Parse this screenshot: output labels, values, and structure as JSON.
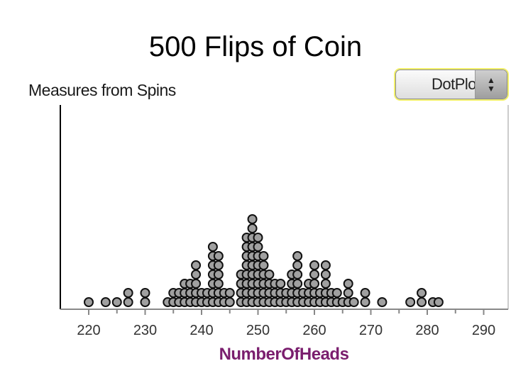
{
  "slide": {
    "title": "500 Flips of Coin"
  },
  "plot": {
    "caption": "Measures from Spins",
    "selector_label": "DotPlot",
    "selector_icon": "up-down-arrows-icon"
  },
  "chart_data": {
    "type": "dot",
    "title": "500 Flips of Coin",
    "xlabel": "NumberOfHeads",
    "xlim": [
      215,
      294
    ],
    "xticks": [
      220,
      230,
      240,
      250,
      260,
      270,
      280,
      290
    ],
    "dot_color": "#a0a0a0",
    "stacks": [
      {
        "x": 220,
        "count": 1
      },
      {
        "x": 223,
        "count": 1
      },
      {
        "x": 225,
        "count": 1
      },
      {
        "x": 227,
        "count": 2
      },
      {
        "x": 230,
        "count": 2
      },
      {
        "x": 234,
        "count": 1
      },
      {
        "x": 235,
        "count": 2
      },
      {
        "x": 236,
        "count": 2
      },
      {
        "x": 237,
        "count": 3
      },
      {
        "x": 238,
        "count": 3
      },
      {
        "x": 239,
        "count": 5
      },
      {
        "x": 240,
        "count": 2
      },
      {
        "x": 241,
        "count": 2
      },
      {
        "x": 242,
        "count": 7
      },
      {
        "x": 243,
        "count": 6
      },
      {
        "x": 244,
        "count": 2
      },
      {
        "x": 245,
        "count": 2
      },
      {
        "x": 247,
        "count": 4
      },
      {
        "x": 248,
        "count": 8
      },
      {
        "x": 249,
        "count": 10
      },
      {
        "x": 250,
        "count": 8
      },
      {
        "x": 251,
        "count": 6
      },
      {
        "x": 252,
        "count": 4
      },
      {
        "x": 253,
        "count": 3
      },
      {
        "x": 254,
        "count": 3
      },
      {
        "x": 255,
        "count": 2
      },
      {
        "x": 256,
        "count": 4
      },
      {
        "x": 257,
        "count": 6
      },
      {
        "x": 258,
        "count": 2
      },
      {
        "x": 259,
        "count": 3
      },
      {
        "x": 260,
        "count": 5
      },
      {
        "x": 261,
        "count": 2
      },
      {
        "x": 262,
        "count": 5
      },
      {
        "x": 263,
        "count": 2
      },
      {
        "x": 264,
        "count": 2
      },
      {
        "x": 265,
        "count": 1
      },
      {
        "x": 266,
        "count": 3
      },
      {
        "x": 267,
        "count": 1
      },
      {
        "x": 269,
        "count": 2
      },
      {
        "x": 272,
        "count": 1
      },
      {
        "x": 277,
        "count": 1
      },
      {
        "x": 279,
        "count": 2
      },
      {
        "x": 281,
        "count": 1
      },
      {
        "x": 282,
        "count": 1
      }
    ]
  }
}
